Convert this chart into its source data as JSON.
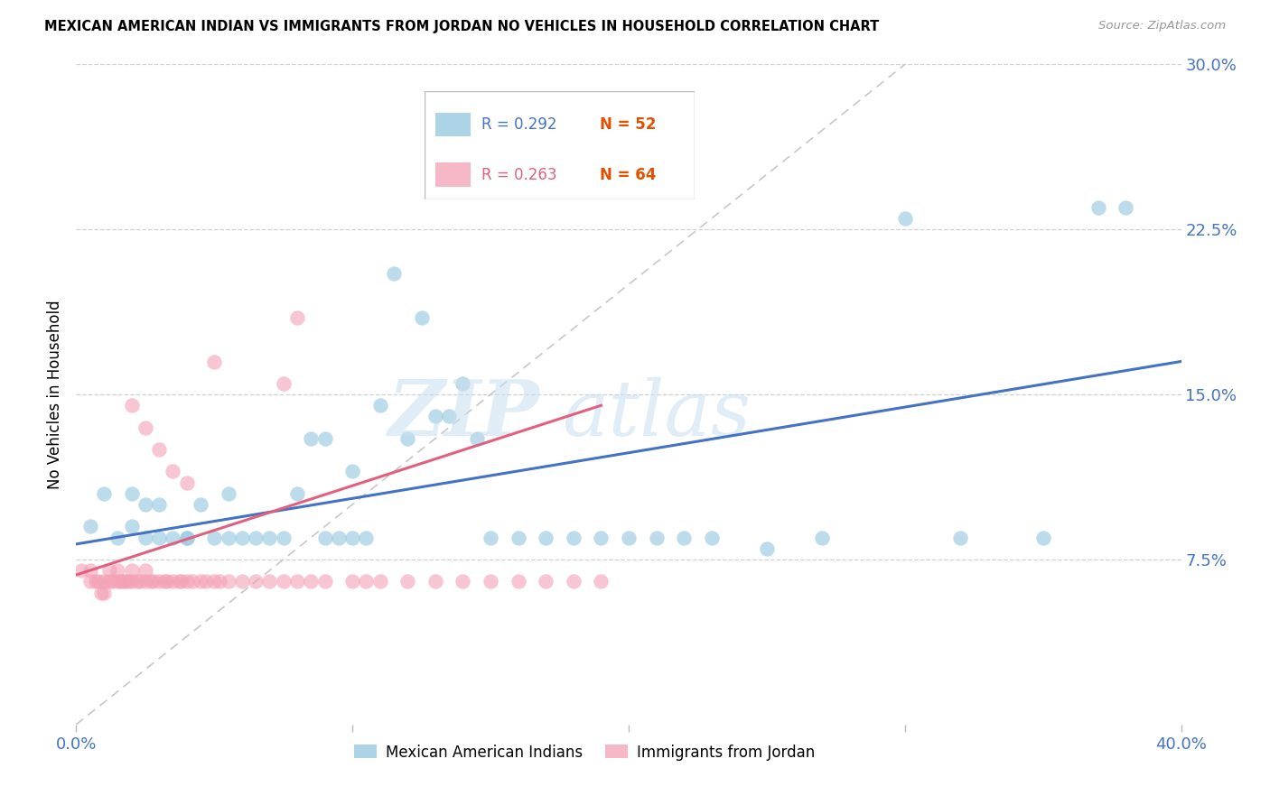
{
  "title": "MEXICAN AMERICAN INDIAN VS IMMIGRANTS FROM JORDAN NO VEHICLES IN HOUSEHOLD CORRELATION CHART",
  "source": "Source: ZipAtlas.com",
  "ylabel": "No Vehicles in Household",
  "x_min": 0.0,
  "x_max": 0.4,
  "y_min": 0.0,
  "y_max": 0.3,
  "y_ticks_right": [
    0.075,
    0.15,
    0.225,
    0.3
  ],
  "y_tick_labels_right": [
    "7.5%",
    "15.0%",
    "22.5%",
    "30.0%"
  ],
  "color_blue": "#92c5de",
  "color_pink": "#f4a0b5",
  "color_blue_line": "#4472c4",
  "color_pink_line": "#e0607e",
  "color_diag": "#c8c8c8",
  "legend_label1": "Mexican American Indians",
  "legend_label2": "Immigrants from Jordan",
  "legend_r1_val": "R = 0.292",
  "legend_r1_n": "N = 52",
  "legend_r2_val": "R = 0.263",
  "legend_r2_n": "N = 64",
  "watermark_zip": "ZIP",
  "watermark_atlas": "atlas",
  "blue_scatter_x": [
    0.005,
    0.01,
    0.015,
    0.02,
    0.02,
    0.025,
    0.025,
    0.03,
    0.03,
    0.035,
    0.04,
    0.04,
    0.045,
    0.05,
    0.055,
    0.055,
    0.06,
    0.065,
    0.07,
    0.075,
    0.08,
    0.085,
    0.09,
    0.09,
    0.095,
    0.1,
    0.1,
    0.105,
    0.11,
    0.115,
    0.12,
    0.125,
    0.13,
    0.135,
    0.14,
    0.145,
    0.15,
    0.16,
    0.17,
    0.18,
    0.19,
    0.2,
    0.21,
    0.22,
    0.23,
    0.25,
    0.27,
    0.3,
    0.32,
    0.35,
    0.37,
    0.38
  ],
  "blue_scatter_y": [
    0.09,
    0.105,
    0.085,
    0.105,
    0.09,
    0.1,
    0.085,
    0.085,
    0.1,
    0.085,
    0.085,
    0.085,
    0.1,
    0.085,
    0.105,
    0.085,
    0.085,
    0.085,
    0.085,
    0.085,
    0.105,
    0.13,
    0.13,
    0.085,
    0.085,
    0.115,
    0.085,
    0.085,
    0.145,
    0.205,
    0.13,
    0.185,
    0.14,
    0.14,
    0.155,
    0.13,
    0.085,
    0.085,
    0.085,
    0.085,
    0.085,
    0.085,
    0.085,
    0.085,
    0.085,
    0.08,
    0.085,
    0.23,
    0.085,
    0.085,
    0.235,
    0.235
  ],
  "pink_scatter_x": [
    0.002,
    0.005,
    0.005,
    0.007,
    0.008,
    0.009,
    0.01,
    0.01,
    0.012,
    0.012,
    0.013,
    0.015,
    0.015,
    0.016,
    0.017,
    0.018,
    0.019,
    0.02,
    0.02,
    0.022,
    0.023,
    0.025,
    0.025,
    0.027,
    0.028,
    0.03,
    0.032,
    0.033,
    0.035,
    0.037,
    0.038,
    0.04,
    0.042,
    0.045,
    0.047,
    0.05,
    0.052,
    0.055,
    0.06,
    0.065,
    0.07,
    0.075,
    0.08,
    0.085,
    0.09,
    0.1,
    0.105,
    0.11,
    0.12,
    0.13,
    0.14,
    0.15,
    0.16,
    0.17,
    0.18,
    0.19,
    0.02,
    0.025,
    0.03,
    0.035,
    0.04,
    0.05,
    0.075,
    0.08
  ],
  "pink_scatter_y": [
    0.07,
    0.07,
    0.065,
    0.065,
    0.065,
    0.06,
    0.065,
    0.06,
    0.065,
    0.07,
    0.065,
    0.065,
    0.07,
    0.065,
    0.065,
    0.065,
    0.065,
    0.065,
    0.07,
    0.065,
    0.065,
    0.065,
    0.07,
    0.065,
    0.065,
    0.065,
    0.065,
    0.065,
    0.065,
    0.065,
    0.065,
    0.065,
    0.065,
    0.065,
    0.065,
    0.065,
    0.065,
    0.065,
    0.065,
    0.065,
    0.065,
    0.065,
    0.065,
    0.065,
    0.065,
    0.065,
    0.065,
    0.065,
    0.065,
    0.065,
    0.065,
    0.065,
    0.065,
    0.065,
    0.065,
    0.065,
    0.145,
    0.135,
    0.125,
    0.115,
    0.11,
    0.165,
    0.155,
    0.185
  ],
  "blue_line_x": [
    0.0,
    0.4
  ],
  "blue_line_y": [
    0.082,
    0.165
  ],
  "pink_line_x": [
    0.0,
    0.19
  ],
  "pink_line_y": [
    0.068,
    0.145
  ]
}
